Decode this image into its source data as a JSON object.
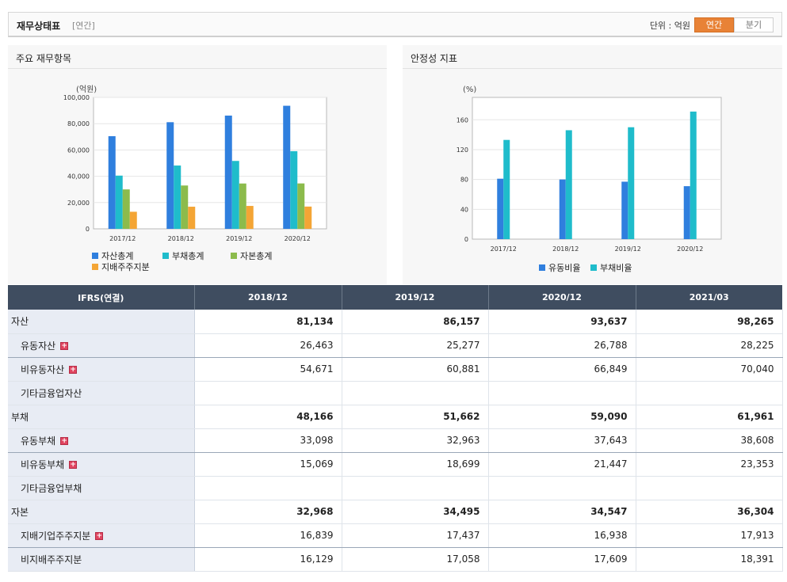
{
  "header": {
    "title": "재무상태표",
    "subtitle": "[연간]",
    "unit_label": "단위 : 억원",
    "toggle": [
      "연간",
      "분기"
    ]
  },
  "colors": {
    "accent": "#e88236",
    "table_header": "#3f4d60",
    "series_blue": "#2f7fde",
    "series_teal": "#1fbccb",
    "series_green": "#8cbb4c",
    "series_orange": "#f4a535"
  },
  "left_panel": {
    "title": "주요 재무항목"
  },
  "right_panel": {
    "title": "안정성 지표"
  },
  "chart_data": [
    {
      "type": "bar",
      "title": "",
      "ylabel": "(억원)",
      "categories": [
        "2017/12",
        "2018/12",
        "2019/12",
        "2020/12"
      ],
      "ylim": [
        0,
        100000
      ],
      "yticks": [
        0,
        20000,
        40000,
        60000,
        80000,
        100000
      ],
      "ytick_labels": [
        "0",
        "20,000",
        "40,000",
        "60,000",
        "80,000",
        "100,000"
      ],
      "grid": true,
      "legend_position": "bottom",
      "series": [
        {
          "name": "자산총계",
          "color": "#2f7fde",
          "values": [
            70500,
            81134,
            86157,
            93637
          ]
        },
        {
          "name": "부채총계",
          "color": "#1fbccb",
          "values": [
            40500,
            48166,
            51662,
            59090
          ]
        },
        {
          "name": "자본총계",
          "color": "#8cbb4c",
          "values": [
            30000,
            32968,
            34495,
            34547
          ]
        },
        {
          "name": "지배주주지분",
          "color": "#f4a535",
          "values": [
            13000,
            16839,
            17437,
            16938
          ]
        }
      ]
    },
    {
      "type": "bar",
      "title": "",
      "ylabel": "(%)",
      "categories": [
        "2017/12",
        "2018/12",
        "2019/12",
        "2020/12"
      ],
      "ylim": [
        0,
        190
      ],
      "yticks": [
        0,
        40,
        80,
        120,
        160
      ],
      "ytick_labels": [
        "0",
        "40",
        "80",
        "120",
        "160"
      ],
      "grid": true,
      "legend_position": "bottom",
      "series": [
        {
          "name": "유동비율",
          "color": "#2f7fde",
          "values": [
            81,
            80,
            77,
            71
          ]
        },
        {
          "name": "부채비율",
          "color": "#1fbccb",
          "values": [
            133,
            146,
            150,
            171
          ]
        }
      ]
    }
  ],
  "table": {
    "header_label": "IFRS(연결)",
    "columns": [
      "2018/12",
      "2019/12",
      "2020/12",
      "2021/03"
    ],
    "rows": [
      {
        "label": "자산",
        "level": 0,
        "expandable": false,
        "values": [
          "81,134",
          "86,157",
          "93,637",
          "98,265"
        ]
      },
      {
        "label": "유동자산",
        "level": 1,
        "expandable": true,
        "values": [
          "26,463",
          "25,277",
          "26,788",
          "28,225"
        ]
      },
      {
        "label": "비유동자산",
        "level": 1,
        "expandable": true,
        "values": [
          "54,671",
          "60,881",
          "66,849",
          "70,040"
        ]
      },
      {
        "label": "기타금융업자산",
        "level": 1,
        "expandable": false,
        "values": [
          "",
          "",
          "",
          ""
        ]
      },
      {
        "label": "부채",
        "level": 0,
        "expandable": false,
        "values": [
          "48,166",
          "51,662",
          "59,090",
          "61,961"
        ]
      },
      {
        "label": "유동부채",
        "level": 1,
        "expandable": true,
        "values": [
          "33,098",
          "32,963",
          "37,643",
          "38,608"
        ]
      },
      {
        "label": "비유동부채",
        "level": 1,
        "expandable": true,
        "values": [
          "15,069",
          "18,699",
          "21,447",
          "23,353"
        ]
      },
      {
        "label": "기타금융업부채",
        "level": 1,
        "expandable": false,
        "values": [
          "",
          "",
          "",
          ""
        ]
      },
      {
        "label": "자본",
        "level": 0,
        "expandable": false,
        "values": [
          "32,968",
          "34,495",
          "34,547",
          "36,304"
        ]
      },
      {
        "label": "지배기업주주지분",
        "level": 1,
        "expandable": true,
        "values": [
          "16,839",
          "17,437",
          "16,938",
          "17,913"
        ]
      },
      {
        "label": "비지배주주지분",
        "level": 1,
        "expandable": false,
        "values": [
          "16,129",
          "17,058",
          "17,609",
          "18,391"
        ]
      }
    ]
  }
}
